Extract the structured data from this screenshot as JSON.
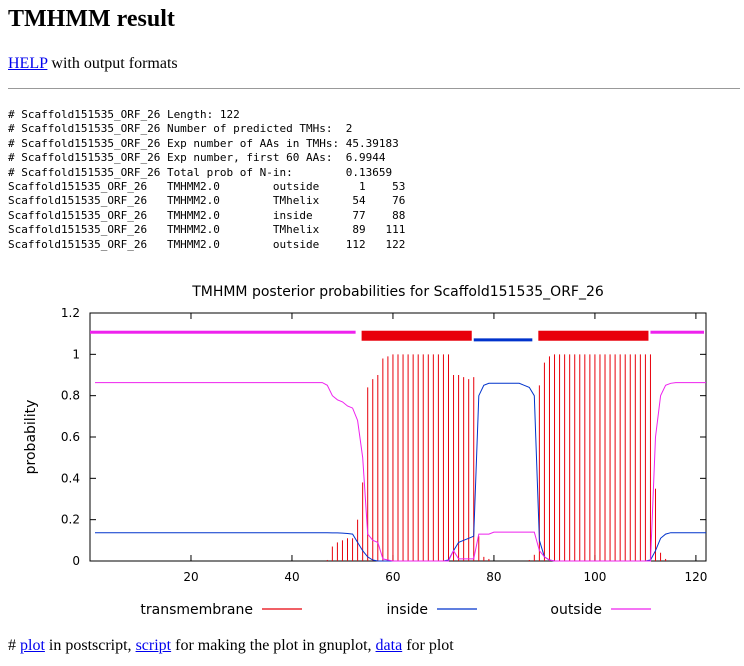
{
  "page": {
    "title": "TMHMM result",
    "help_link": "HELP",
    "help_suffix": " with output formats",
    "footer": {
      "prefix": "# ",
      "plot_link": "plot",
      "after_plot": " in postscript, ",
      "script_link": "script",
      "after_script": " for making the plot in gnuplot, ",
      "data_link": "data",
      "after_data": " for plot"
    }
  },
  "result_text": {
    "header_lines": [
      "# Scaffold151535_ORF_26 Length: 122",
      "# Scaffold151535_ORF_26 Number of predicted TMHs:  2",
      "# Scaffold151535_ORF_26 Exp number of AAs in TMHs: 45.39183",
      "# Scaffold151535_ORF_26 Exp number, first 60 AAs:  6.9944",
      "# Scaffold151535_ORF_26 Total prob of N-in:        0.13659"
    ],
    "rows": [
      {
        "seq": "Scaffold151535_ORF_26",
        "method": "TMHMM2.0",
        "topology": "outside",
        "start": 1,
        "end": 53
      },
      {
        "seq": "Scaffold151535_ORF_26",
        "method": "TMHMM2.0",
        "topology": "TMhelix",
        "start": 54,
        "end": 76
      },
      {
        "seq": "Scaffold151535_ORF_26",
        "method": "TMHMM2.0",
        "topology": "inside",
        "start": 77,
        "end": 88
      },
      {
        "seq": "Scaffold151535_ORF_26",
        "method": "TMHMM2.0",
        "topology": "TMhelix",
        "start": 89,
        "end": 111
      },
      {
        "seq": "Scaffold151535_ORF_26",
        "method": "TMHMM2.0",
        "topology": "outside",
        "start": 112,
        "end": 122
      }
    ]
  },
  "chart_data": {
    "type": "line",
    "title": "TMHMM posterior probabilities for Scaffold151535_ORF_26",
    "xlabel": "",
    "ylabel": "probability",
    "xlim": [
      0,
      122
    ],
    "ylim": [
      0,
      1.2
    ],
    "xticks": [
      20,
      40,
      60,
      80,
      100,
      120
    ],
    "yticks": [
      0,
      0.2,
      0.4,
      0.6,
      0.8,
      1,
      1.2
    ],
    "ytick_labels": [
      "0",
      "0.2",
      "0.4",
      "0.6",
      "0.8",
      "1",
      "1.2"
    ],
    "grid": false,
    "legend_position": "bottom",
    "colors": {
      "transmembrane": "#e8000b",
      "inside": "#0033cc",
      "outside": "#ee22ee"
    },
    "series": [
      {
        "name": "transmembrane",
        "style": "impulses",
        "x": [
          1,
          2,
          3,
          4,
          5,
          6,
          7,
          8,
          9,
          10,
          11,
          12,
          13,
          14,
          15,
          16,
          17,
          18,
          19,
          20,
          21,
          22,
          23,
          24,
          25,
          26,
          27,
          28,
          29,
          30,
          31,
          32,
          33,
          34,
          35,
          36,
          37,
          38,
          39,
          40,
          41,
          42,
          43,
          44,
          45,
          46,
          47,
          48,
          49,
          50,
          51,
          52,
          53,
          54,
          55,
          56,
          57,
          58,
          59,
          60,
          61,
          62,
          63,
          64,
          65,
          66,
          67,
          68,
          69,
          70,
          71,
          72,
          73,
          74,
          75,
          76,
          77,
          78,
          79,
          80,
          81,
          82,
          83,
          84,
          85,
          86,
          87,
          88,
          89,
          90,
          91,
          92,
          93,
          94,
          95,
          96,
          97,
          98,
          99,
          100,
          101,
          102,
          103,
          104,
          105,
          106,
          107,
          108,
          109,
          110,
          111,
          112,
          113,
          114,
          115,
          116,
          117,
          118,
          119,
          120,
          121,
          122
        ],
        "values": [
          0,
          0,
          0,
          0,
          0,
          0,
          0,
          0,
          0,
          0,
          0,
          0,
          0,
          0,
          0,
          0,
          0,
          0,
          0,
          0,
          0,
          0,
          0,
          0,
          0,
          0,
          0,
          0,
          0,
          0,
          0,
          0,
          0,
          0,
          0,
          0,
          0,
          0,
          0,
          0,
          0,
          0,
          0,
          0,
          0,
          0,
          0.005,
          0.07,
          0.09,
          0.1,
          0.11,
          0.11,
          0.2,
          0.38,
          0.84,
          0.88,
          0.9,
          0.98,
          0.99,
          1,
          1,
          1,
          1,
          1,
          1,
          1,
          1,
          1,
          1,
          1,
          1,
          0.9,
          0.9,
          0.89,
          0.88,
          0.89,
          0.12,
          0.02,
          0.01,
          0,
          0,
          0,
          0,
          0,
          0,
          0,
          0.005,
          0.03,
          0.85,
          0.96,
          0.99,
          1,
          1,
          1,
          1,
          1,
          1,
          1,
          1,
          1,
          1,
          1,
          1,
          1,
          1,
          1,
          1,
          1,
          1,
          1,
          1,
          0.35,
          0.04,
          0.01,
          0,
          0,
          0,
          0,
          0,
          0,
          0,
          0
        ]
      },
      {
        "name": "inside",
        "style": "line",
        "x": [
          1,
          2,
          3,
          4,
          5,
          6,
          7,
          8,
          9,
          10,
          11,
          12,
          13,
          14,
          15,
          16,
          17,
          18,
          19,
          20,
          21,
          22,
          23,
          24,
          25,
          26,
          27,
          28,
          29,
          30,
          31,
          32,
          33,
          34,
          35,
          36,
          37,
          38,
          39,
          40,
          41,
          42,
          43,
          44,
          45,
          46,
          47,
          48,
          49,
          50,
          51,
          52,
          53,
          54,
          55,
          56,
          57,
          58,
          59,
          60,
          61,
          62,
          63,
          64,
          65,
          66,
          67,
          68,
          69,
          70,
          71,
          72,
          73,
          74,
          75,
          76,
          77,
          78,
          79,
          80,
          81,
          82,
          83,
          84,
          85,
          86,
          87,
          88,
          89,
          90,
          91,
          92,
          93,
          94,
          95,
          96,
          97,
          98,
          99,
          100,
          101,
          102,
          103,
          104,
          105,
          106,
          107,
          108,
          109,
          110,
          111,
          112,
          113,
          114,
          115,
          116,
          117,
          118,
          119,
          120,
          121,
          122
        ],
        "values": [
          0.137,
          0.137,
          0.137,
          0.137,
          0.137,
          0.137,
          0.137,
          0.137,
          0.137,
          0.137,
          0.137,
          0.137,
          0.137,
          0.137,
          0.137,
          0.137,
          0.137,
          0.137,
          0.137,
          0.137,
          0.137,
          0.137,
          0.137,
          0.137,
          0.137,
          0.137,
          0.137,
          0.137,
          0.137,
          0.137,
          0.137,
          0.137,
          0.137,
          0.137,
          0.137,
          0.137,
          0.137,
          0.137,
          0.137,
          0.137,
          0.137,
          0.137,
          0.137,
          0.137,
          0.137,
          0.137,
          0.137,
          0.136,
          0.136,
          0.135,
          0.133,
          0.13,
          0.09,
          0.05,
          0.02,
          0.005,
          0,
          0,
          0,
          0,
          0,
          0,
          0,
          0,
          0,
          0,
          0,
          0,
          0,
          0,
          0.005,
          0.05,
          0.09,
          0.1,
          0.11,
          0.12,
          0.8,
          0.85,
          0.86,
          0.86,
          0.86,
          0.86,
          0.86,
          0.86,
          0.86,
          0.85,
          0.84,
          0.8,
          0.1,
          0.02,
          0.005,
          0,
          0,
          0,
          0,
          0,
          0,
          0,
          0,
          0,
          0,
          0,
          0,
          0,
          0,
          0,
          0,
          0,
          0,
          0,
          0.005,
          0.05,
          0.11,
          0.13,
          0.137,
          0.137,
          0.137,
          0.137,
          0.137,
          0.137,
          0.137,
          0.137
        ]
      },
      {
        "name": "outside",
        "style": "line",
        "x": [
          1,
          2,
          3,
          4,
          5,
          6,
          7,
          8,
          9,
          10,
          11,
          12,
          13,
          14,
          15,
          16,
          17,
          18,
          19,
          20,
          21,
          22,
          23,
          24,
          25,
          26,
          27,
          28,
          29,
          30,
          31,
          32,
          33,
          34,
          35,
          36,
          37,
          38,
          39,
          40,
          41,
          42,
          43,
          44,
          45,
          46,
          47,
          48,
          49,
          50,
          51,
          52,
          53,
          54,
          55,
          56,
          57,
          58,
          59,
          60,
          61,
          62,
          63,
          64,
          65,
          66,
          67,
          68,
          69,
          70,
          71,
          72,
          73,
          74,
          75,
          76,
          77,
          78,
          79,
          80,
          81,
          82,
          83,
          84,
          85,
          86,
          87,
          88,
          89,
          90,
          91,
          92,
          93,
          94,
          95,
          96,
          97,
          98,
          99,
          100,
          101,
          102,
          103,
          104,
          105,
          106,
          107,
          108,
          109,
          110,
          111,
          112,
          113,
          114,
          115,
          116,
          117,
          118,
          119,
          120,
          121,
          122
        ],
        "values": [
          0.863,
          0.863,
          0.863,
          0.863,
          0.863,
          0.863,
          0.863,
          0.863,
          0.863,
          0.863,
          0.863,
          0.863,
          0.863,
          0.863,
          0.863,
          0.863,
          0.863,
          0.863,
          0.863,
          0.863,
          0.863,
          0.863,
          0.863,
          0.863,
          0.863,
          0.863,
          0.863,
          0.863,
          0.863,
          0.863,
          0.863,
          0.863,
          0.863,
          0.863,
          0.863,
          0.863,
          0.863,
          0.863,
          0.863,
          0.863,
          0.863,
          0.863,
          0.863,
          0.863,
          0.863,
          0.863,
          0.85,
          0.8,
          0.78,
          0.77,
          0.75,
          0.74,
          0.68,
          0.5,
          0.13,
          0.1,
          0.09,
          0.01,
          0.005,
          0,
          0,
          0,
          0,
          0,
          0,
          0,
          0,
          0,
          0,
          0,
          0,
          0.05,
          0.01,
          0.01,
          0.01,
          0.01,
          0.13,
          0.13,
          0.13,
          0.14,
          0.14,
          0.14,
          0.14,
          0.14,
          0.14,
          0.14,
          0.14,
          0.14,
          0.05,
          0.02,
          0.005,
          0,
          0,
          0,
          0,
          0,
          0,
          0,
          0,
          0,
          0,
          0,
          0,
          0,
          0,
          0,
          0,
          0,
          0,
          0,
          0,
          0.6,
          0.8,
          0.85,
          0.86,
          0.863,
          0.863,
          0.863,
          0.863,
          0.863,
          0.863,
          0.863
        ]
      }
    ],
    "topology_bars": [
      {
        "label": "outside",
        "start": 1,
        "end": 53,
        "level": 1.107
      },
      {
        "label": "TMhelix",
        "start": 54,
        "end": 76,
        "level": 1.09
      },
      {
        "label": "inside",
        "start": 77,
        "end": 88,
        "level": 1.07
      },
      {
        "label": "TMhelix",
        "start": 89,
        "end": 111,
        "level": 1.09
      },
      {
        "label": "outside",
        "start": 112,
        "end": 122,
        "level": 1.107
      }
    ]
  }
}
